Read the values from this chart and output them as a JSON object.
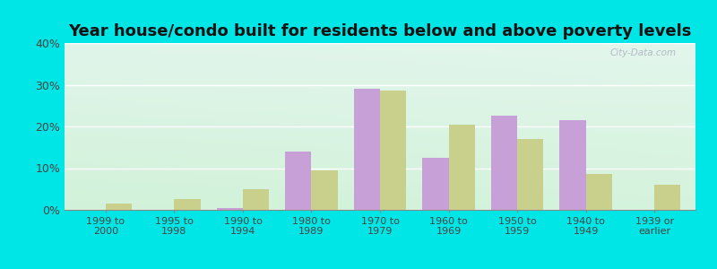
{
  "title": "Year house/condo built for residents below and above poverty levels",
  "categories": [
    "1999 to\n2000",
    "1995 to\n1998",
    "1990 to\n1994",
    "1980 to\n1989",
    "1970 to\n1979",
    "1960 to\n1969",
    "1950 to\n1959",
    "1940 to\n1949",
    "1939 or\nearlier"
  ],
  "below_poverty": [
    0.0,
    0.0,
    0.5,
    14.0,
    29.0,
    12.5,
    22.5,
    21.5,
    0.0
  ],
  "above_poverty": [
    1.5,
    2.5,
    5.0,
    9.5,
    28.5,
    20.5,
    17.0,
    8.5,
    6.0
  ],
  "below_color": "#c8a0d8",
  "above_color": "#c8d08c",
  "ylim": [
    0,
    40
  ],
  "yticks": [
    0,
    10,
    20,
    30,
    40
  ],
  "ytick_labels": [
    "0%",
    "10%",
    "20%",
    "30%",
    "40%"
  ],
  "title_fontsize": 13,
  "outer_bg": "#00e5e5",
  "bar_width": 0.38
}
